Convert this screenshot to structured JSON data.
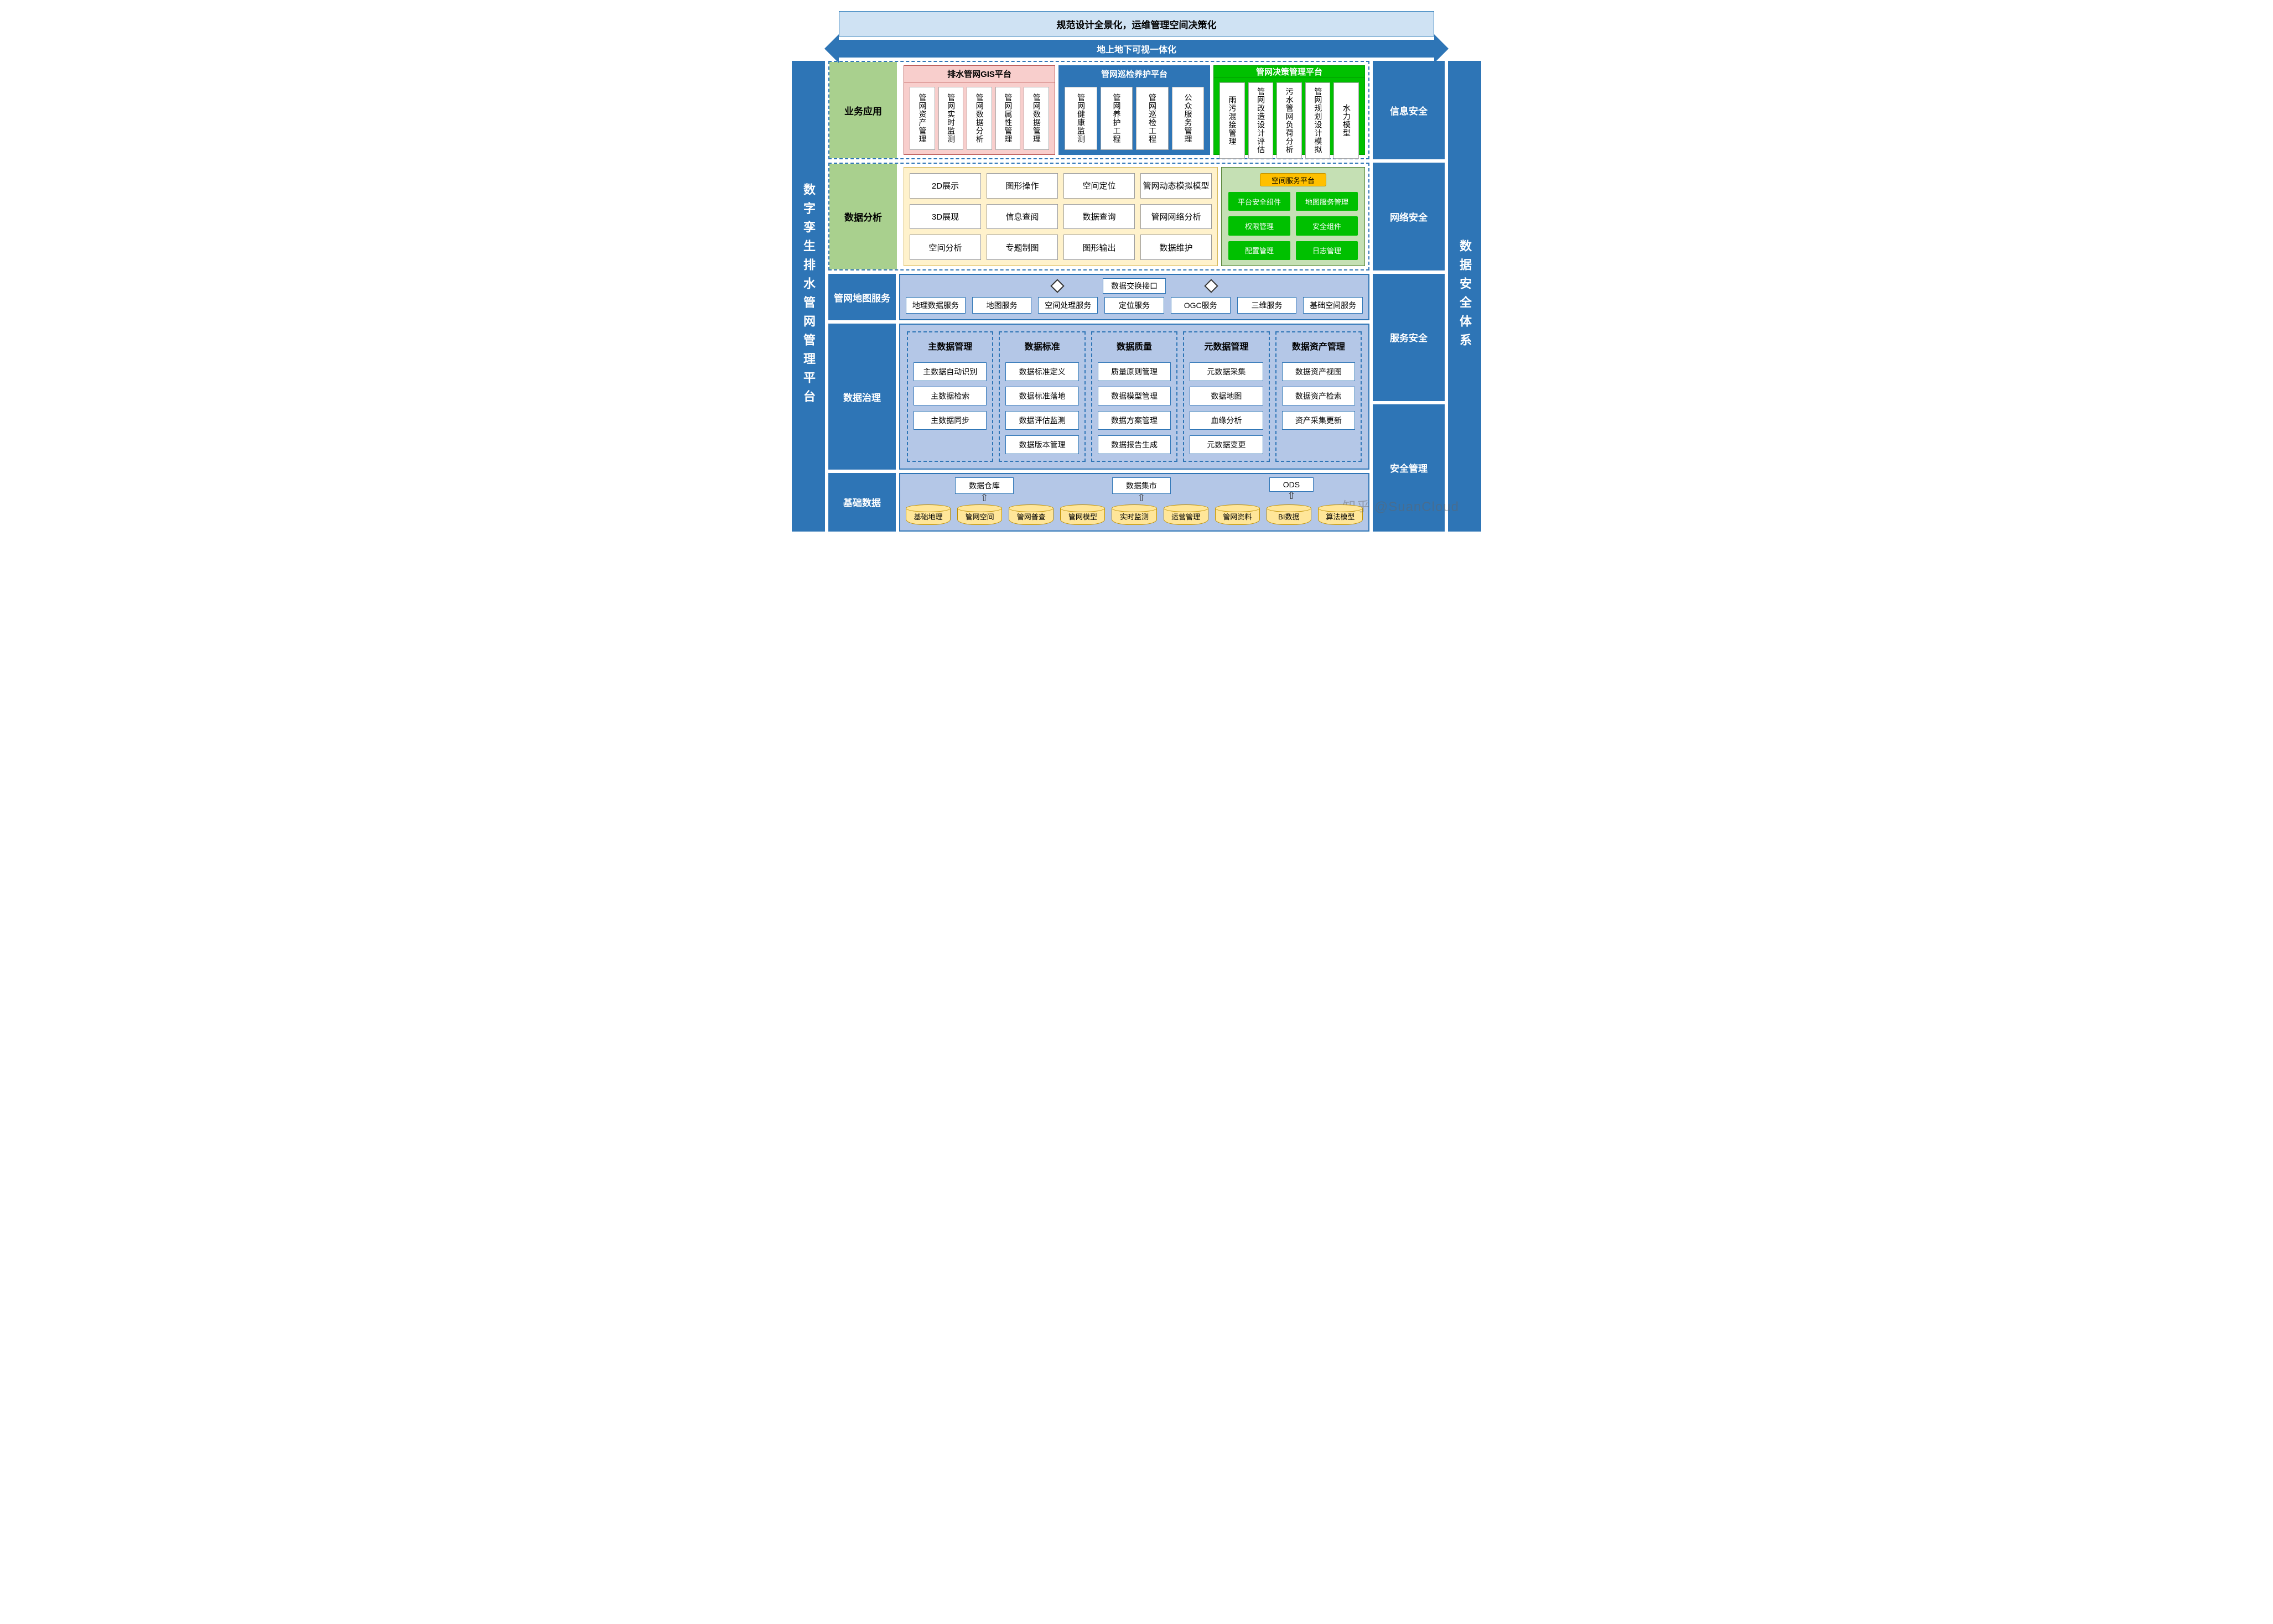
{
  "colors": {
    "primary_blue": "#2e75b6",
    "light_blue_banner": "#cfe2f3",
    "panel_blue": "#b4c7e7",
    "green_label": "#a9d08e",
    "pink": "#f8cecc",
    "pink_border": "#b85450",
    "yellow_bg": "#fff2cc",
    "yellow_border": "#d6b656",
    "light_green": "#c5e0b4",
    "bright_green": "#00c000",
    "orange": "#ffc000",
    "cyl": "#ffe699"
  },
  "banner1": "规范设计全景化，运维管理空间决策化",
  "banner2": "地上地下可视一体化",
  "left_pillar": "数字孪生排水管网管理平台",
  "right_pillar": "数据安全体系",
  "right_boxes": [
    "信息安全",
    "网络安全",
    "服务安全",
    "安全管理"
  ],
  "rows": {
    "biz": {
      "label": "业务应用",
      "platforms": [
        {
          "title": "排水管网GIS平台",
          "bg": "#f8cecc",
          "border": "#b85450",
          "head_text": "#000",
          "cards": [
            "管网资产管理",
            "管网实时监测",
            "管网数据分析",
            "管网属性管理",
            "管网数据管理"
          ]
        },
        {
          "title": "管网巡检养护平台",
          "bg": "#2e75b6",
          "border": "#2e75b6",
          "head_text": "#fff",
          "cards": [
            "管网健康监测",
            "管网养护工程",
            "管网巡检工程",
            "公众服务管理"
          ]
        },
        {
          "title": "管网决策管理平台",
          "bg": "#00c000",
          "border": "#00a000",
          "head_text": "#fff",
          "cards": [
            "雨污混接管理",
            "管网改造设计评估",
            "污水管网负荷分析",
            "管网规划设计模拟",
            "水力模型"
          ]
        }
      ]
    },
    "ana": {
      "label": "数据分析",
      "grid": [
        [
          "2D展示",
          "图形操作",
          "空间定位",
          "管网动态模拟模型"
        ],
        [
          "3D展现",
          "信息查阅",
          "数据查询",
          "管网网络分析"
        ],
        [
          "空间分析",
          "专题制图",
          "图形输出",
          "数据维护"
        ]
      ],
      "svc_title": "空间服务平台",
      "svc_items": [
        "平台安全组件",
        "地图服务管理",
        "权限管理",
        "安全组件",
        "配置管理",
        "日志管理"
      ]
    },
    "map": {
      "label": "管网地图服务",
      "exchange": "数据交换接口",
      "services": [
        "地理数据服务",
        "地图服务",
        "空间处理服务",
        "定位服务",
        "OGC服务",
        "三维服务",
        "基础空间服务"
      ]
    },
    "gov": {
      "label": "数据治理",
      "cols": [
        {
          "h": "主数据管理",
          "items": [
            "主数据自动识别",
            "主数据检索",
            "主数据同步"
          ],
          "pad": 1
        },
        {
          "h": "数据标准",
          "items": [
            "数据标准定义",
            "数据标准落地",
            "数据评估监测",
            "数据版本管理"
          ],
          "pad": 0
        },
        {
          "h": "数据质量",
          "items": [
            "质量原则管理",
            "数据模型管理",
            "数据方案管理",
            "数据报告生成"
          ],
          "pad": 0
        },
        {
          "h": "元数据管理",
          "items": [
            "元数据采集",
            "数据地图",
            "血缘分析",
            "元数据变更"
          ],
          "pad": 0
        },
        {
          "h": "数据资产管理",
          "items": [
            "数据资产视图",
            "数据资产检索",
            "资产采集更新"
          ],
          "pad": 1
        }
      ]
    },
    "base": {
      "label": "基础数据",
      "repos": [
        "数据仓库",
        "数据集市",
        "ODS"
      ],
      "cylinders": [
        "基础地理",
        "管网空间",
        "管网普查",
        "管网模型",
        "实时监测",
        "运营管理",
        "管网资料",
        "BI数据",
        "算法模型"
      ]
    }
  },
  "watermark": "知乎 @SuanCloud"
}
